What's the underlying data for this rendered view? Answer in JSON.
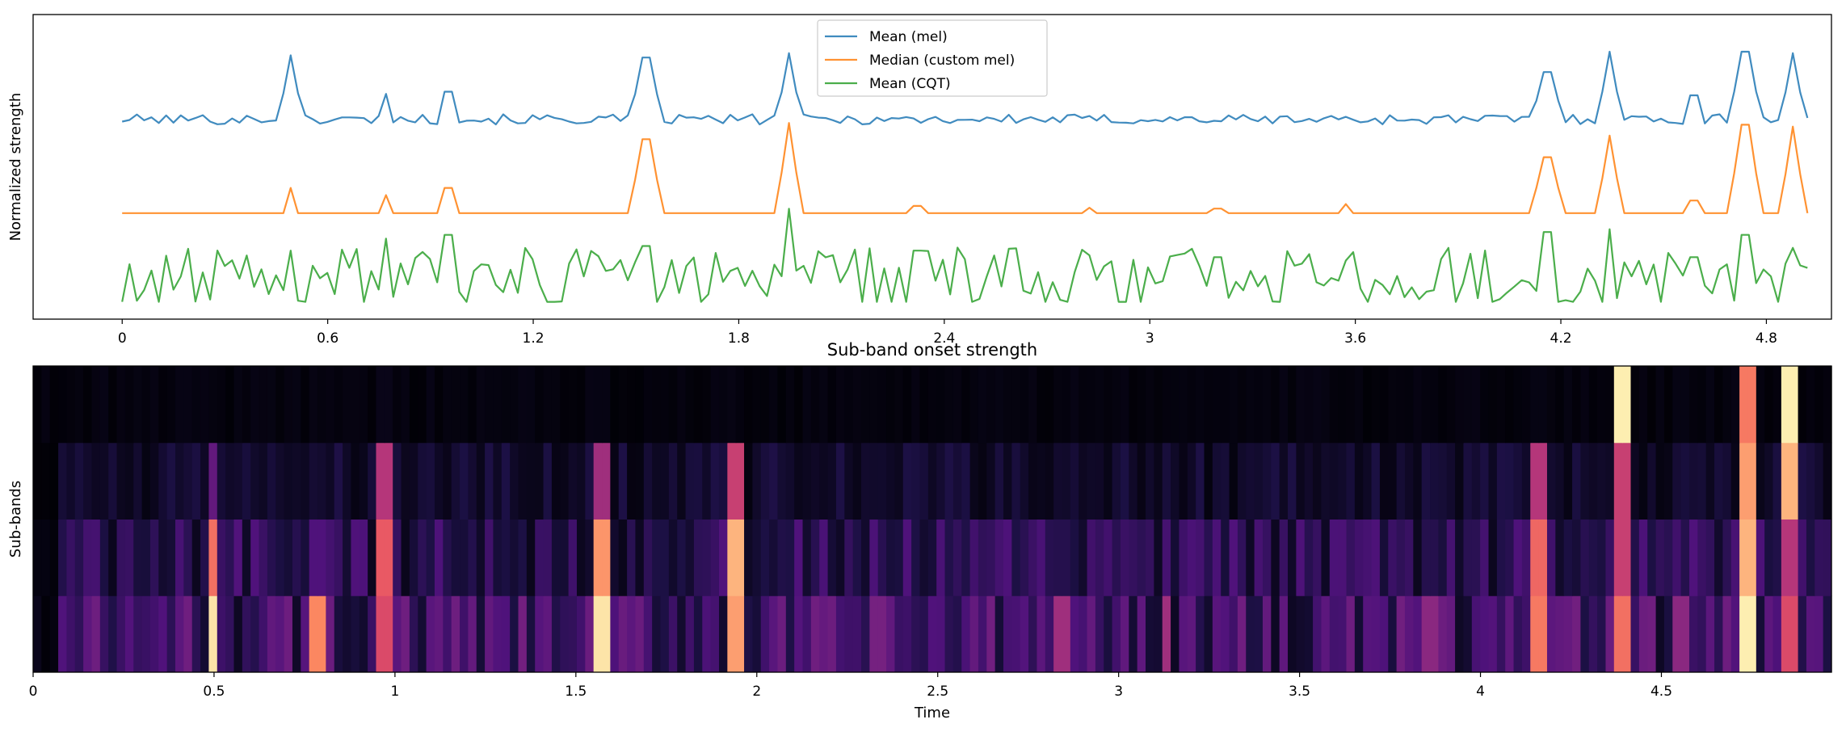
{
  "chart_data": [
    {
      "type": "line",
      "title": "",
      "xlabel": "",
      "ylabel": "Normalized strength",
      "xlim": [
        -0.26,
        4.99
      ],
      "ylim": [
        0,
        1
      ],
      "xticks": [
        0,
        0.6,
        1.2,
        1.8,
        2.4,
        3,
        3.6,
        4.2,
        4.8
      ],
      "xtick_labels": [
        "0",
        "0.6",
        "1.2",
        "1.8",
        "2.4",
        "3",
        "3.6",
        "4.2",
        "4.8"
      ],
      "yticks": [],
      "grid": false,
      "legend_position": "upper-center",
      "series": [
        {
          "name": "Mean (mel)",
          "color": "#1f77b4",
          "baseline": 0.65,
          "amplitude": 0.25,
          "noise": 0.035,
          "spikes": [
            [
              0.49,
              0.95
            ],
            [
              0.77,
              0.42
            ],
            [
              0.95,
              0.45
            ],
            [
              1.53,
              0.92
            ],
            [
              1.95,
              0.98
            ],
            [
              4.16,
              0.72
            ],
            [
              4.35,
              1.0
            ],
            [
              4.59,
              0.4
            ],
            [
              4.74,
              1.0
            ],
            [
              4.87,
              0.98
            ]
          ]
        },
        {
          "name": "Median (custom mel)",
          "color": "#ff7f0e",
          "baseline": 0.345,
          "amplitude": 0.31,
          "noise": 0.0,
          "spikes": [
            [
              0.49,
              0.28
            ],
            [
              0.77,
              0.2
            ],
            [
              0.95,
              0.28
            ],
            [
              1.53,
              0.82
            ],
            [
              1.95,
              1.0
            ],
            [
              2.32,
              0.08
            ],
            [
              2.82,
              0.06
            ],
            [
              3.2,
              0.05
            ],
            [
              3.58,
              0.1
            ],
            [
              4.16,
              0.62
            ],
            [
              4.35,
              0.86
            ],
            [
              4.59,
              0.14
            ],
            [
              4.74,
              0.98
            ],
            [
              4.87,
              0.96
            ]
          ]
        },
        {
          "name": "Mean (CQT)",
          "color": "#2ca02c",
          "baseline": 0.04,
          "amplitude": 0.32,
          "noise": 0.22,
          "spikes": [
            [
              0.49,
              0.55
            ],
            [
              0.77,
              0.68
            ],
            [
              0.95,
              0.72
            ],
            [
              1.53,
              0.6
            ],
            [
              1.95,
              1.0
            ],
            [
              2.32,
              0.55
            ],
            [
              2.82,
              0.5
            ],
            [
              3.2,
              0.48
            ],
            [
              3.88,
              0.58
            ],
            [
              4.16,
              0.75
            ],
            [
              4.35,
              0.78
            ],
            [
              4.59,
              0.48
            ],
            [
              4.74,
              0.72
            ],
            [
              4.87,
              0.58
            ]
          ]
        }
      ]
    },
    {
      "type": "heatmap",
      "title": "Sub-band onset strength",
      "xlabel": "Time",
      "ylabel": "Sub-bands",
      "xlim": [
        0,
        4.97
      ],
      "xticks": [
        0,
        0.5,
        1,
        1.5,
        2,
        2.5,
        3,
        3.5,
        4,
        4.5
      ],
      "xtick_labels": [
        "0",
        "0.5",
        "1",
        "1.5",
        "2",
        "2.5",
        "3",
        "3.5",
        "4",
        "4.5"
      ],
      "yticks": [],
      "colormap": "magma",
      "n_bands": 4,
      "n_frames": 215,
      "band_base_levels": [
        0.2,
        0.15,
        0.08,
        0.02
      ],
      "hotspots": [
        {
          "t": 0.5,
          "w": 0.03,
          "bands": [
            0.95,
            0.7,
            0.3,
            0.02
          ]
        },
        {
          "t": 0.79,
          "w": 0.05,
          "bands": [
            0.75,
            0.25,
            0.05,
            0.02
          ]
        },
        {
          "t": 0.97,
          "w": 0.03,
          "bands": [
            0.6,
            0.65,
            0.5,
            0.04
          ]
        },
        {
          "t": 1.57,
          "w": 0.03,
          "bands": [
            0.95,
            0.78,
            0.45,
            0.03
          ]
        },
        {
          "t": 1.95,
          "w": 0.04,
          "bands": [
            0.8,
            0.85,
            0.55,
            0.02
          ]
        },
        {
          "t": 2.34,
          "w": 0.04,
          "bands": [
            0.35,
            0.12,
            0.08,
            0.02
          ]
        },
        {
          "t": 2.84,
          "w": 0.03,
          "bands": [
            0.45,
            0.15,
            0.08,
            0.02
          ]
        },
        {
          "t": 3.13,
          "w": 0.03,
          "bands": [
            0.45,
            0.15,
            0.08,
            0.02
          ]
        },
        {
          "t": 3.86,
          "w": 0.03,
          "bands": [
            0.4,
            0.15,
            0.08,
            0.02
          ]
        },
        {
          "t": 4.16,
          "w": 0.04,
          "bands": [
            0.72,
            0.68,
            0.5,
            0.03
          ]
        },
        {
          "t": 4.39,
          "w": 0.03,
          "bands": [
            0.7,
            0.55,
            0.55,
            0.97
          ]
        },
        {
          "t": 4.55,
          "w": 0.03,
          "bands": [
            0.4,
            0.15,
            0.1,
            0.03
          ]
        },
        {
          "t": 4.74,
          "w": 0.04,
          "bands": [
            0.97,
            0.85,
            0.8,
            0.72
          ]
        },
        {
          "t": 4.86,
          "w": 0.03,
          "bands": [
            0.6,
            0.5,
            0.85,
            0.97
          ]
        }
      ]
    }
  ]
}
